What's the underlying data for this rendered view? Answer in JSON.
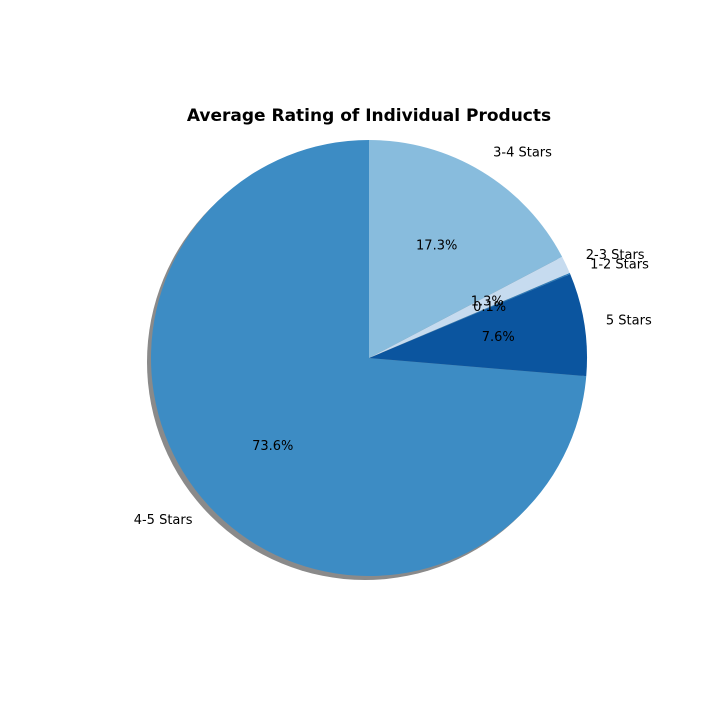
{
  "chart_data": {
    "type": "pie",
    "title": "Average Rating of Individual Products",
    "start_angle_deg": 90,
    "direction": "counterclockwise",
    "shadow": true,
    "slices": [
      {
        "label": "4-5 Stars",
        "value": 73.6,
        "pct_label": "73.6%",
        "color": "#3d8cc4"
      },
      {
        "label": "5 Stars",
        "value": 7.6,
        "pct_label": "7.6%",
        "color": "#0b559f"
      },
      {
        "label": "1-2 Stars",
        "value": 0.1,
        "pct_label": "0.1%",
        "color": "#2b7bba"
      },
      {
        "label": "2-3 Stars",
        "value": 1.3,
        "pct_label": "1.3%",
        "color": "#c6dbef"
      },
      {
        "label": "3-4 Stars",
        "value": 17.3,
        "pct_label": "17.3%",
        "color": "#88bcdd"
      }
    ]
  }
}
